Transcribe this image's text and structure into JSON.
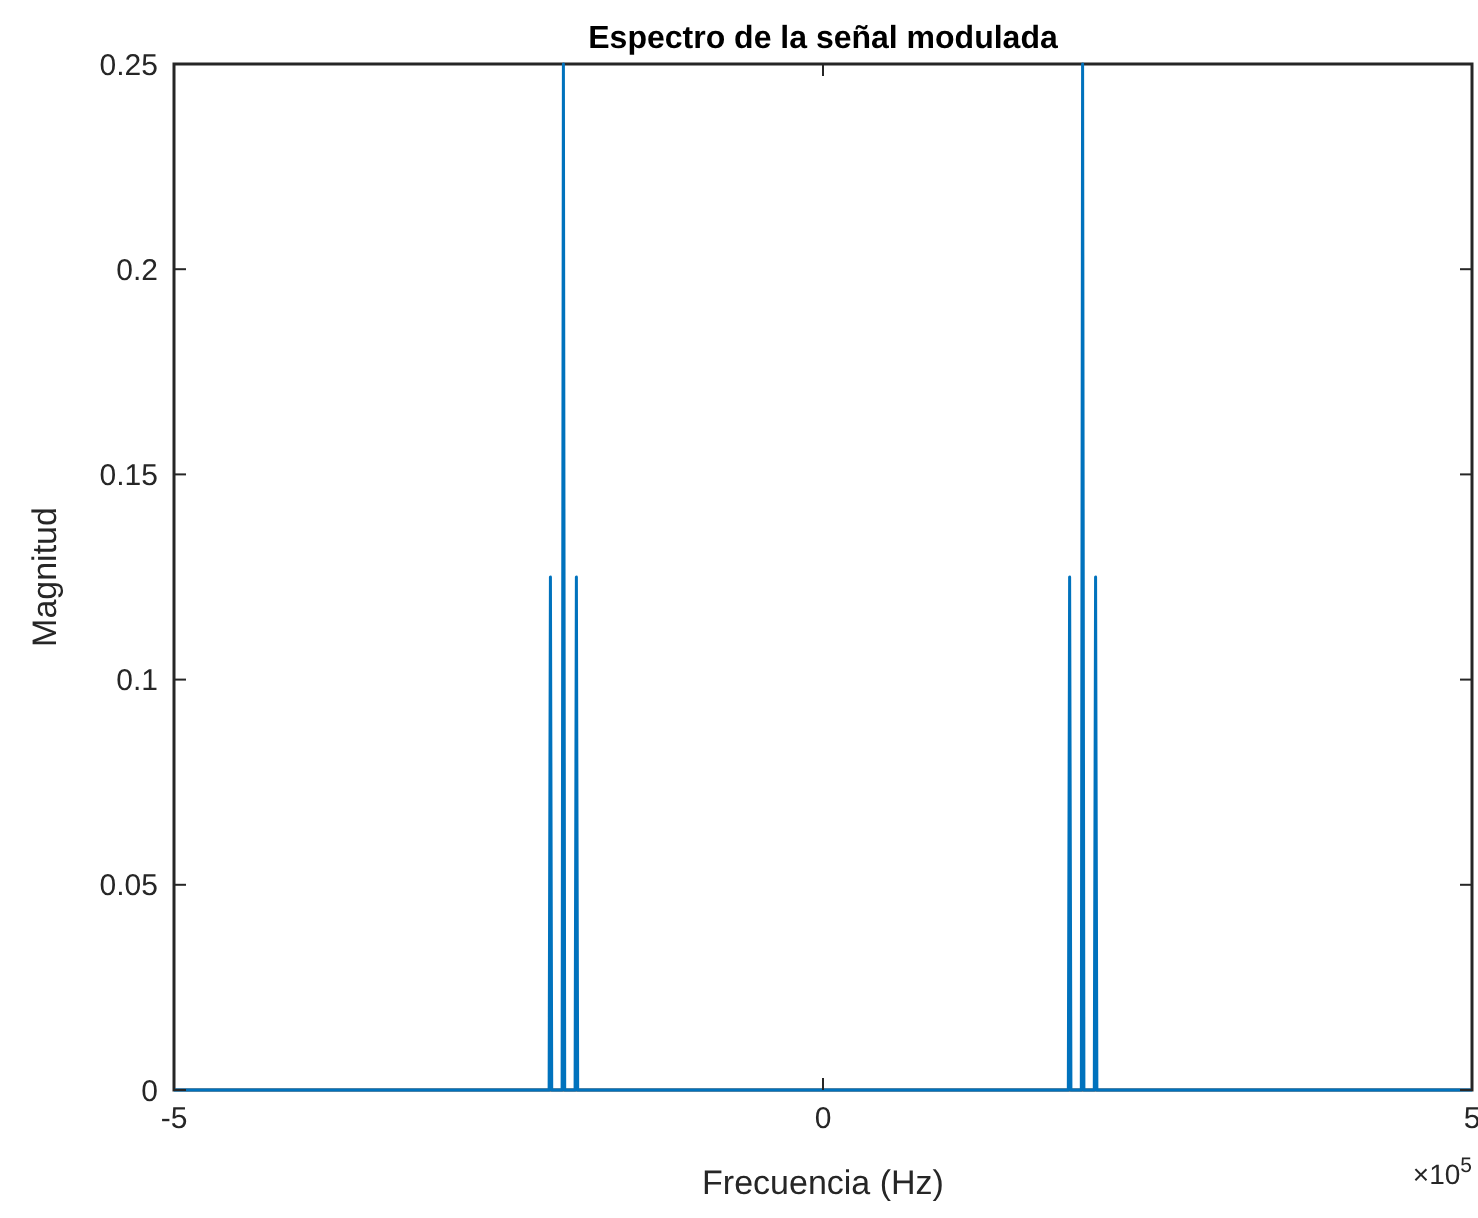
{
  "chart_data": {
    "type": "line",
    "title": "Espectro de la señal modulada",
    "xlabel": "Frecuencia (Hz)",
    "ylabel": "Magnitud",
    "annotations": [
      "×10$^{5}$"
    ],
    "x": [
      -5,
      -2.11,
      -2.1,
      -2.09,
      -2.01,
      -2,
      -1.99,
      -1.91,
      -1.9,
      -1.89,
      1.89,
      1.9,
      1.91,
      1.99,
      2,
      2.01,
      2.09,
      2.1,
      2.11,
      5
    ],
    "series": [
      {
        "color": "#0072bd",
        "values": [
          0,
          0,
          0.125,
          0,
          0,
          0.25,
          0,
          0,
          0.125,
          0,
          0,
          0.125,
          0,
          0,
          0.25,
          0,
          0,
          0.125,
          0,
          0
        ]
      }
    ],
    "xlim": [
      -5,
      5
    ],
    "xticks": [
      -5,
      0,
      5
    ],
    "ylim": [
      0,
      0.25
    ],
    "yticks": [
      0,
      0.05,
      0.1,
      0.15,
      0.2,
      0.25
    ],
    "grid": false,
    "marker": "none",
    "line_style": "solid"
  }
}
